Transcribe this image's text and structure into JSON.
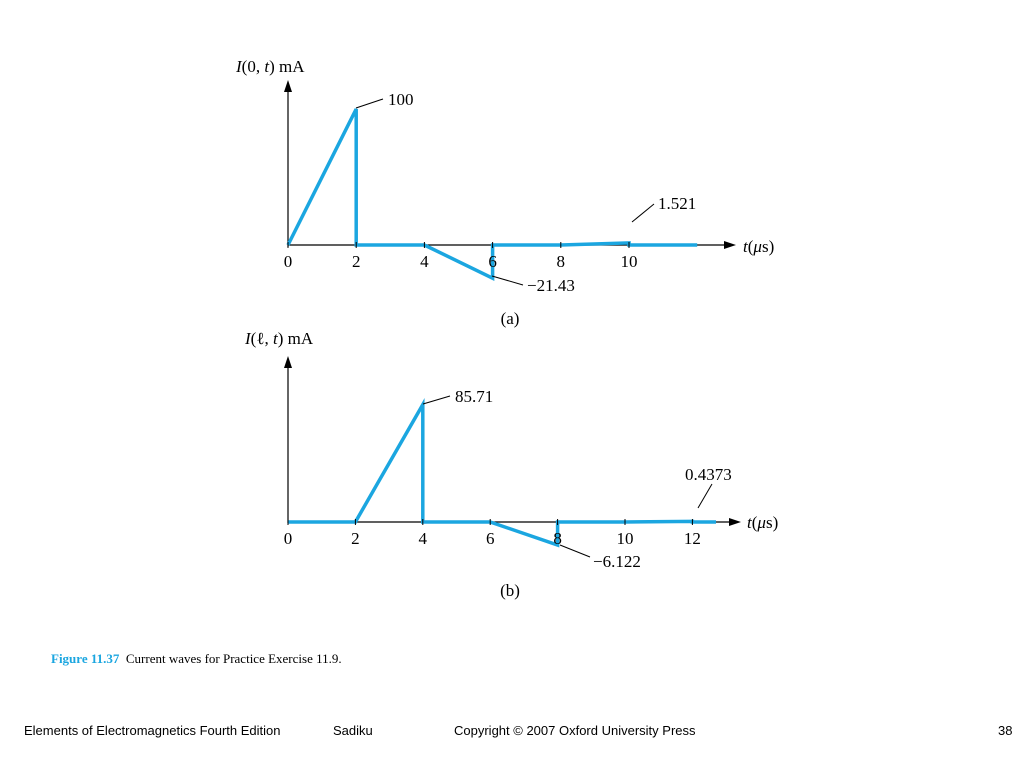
{
  "colors": {
    "wave": "#1ba6e0",
    "caption_label": "#1ba6e0"
  },
  "chart_data": [
    {
      "type": "line",
      "ylabel": {
        "italic": "I",
        "rest": "(0, ",
        "var": "t",
        "unit": ") mA"
      },
      "xlabel": {
        "var": "t",
        "unit_open": "(",
        "unit_mu": "μ",
        "unit_rest": "s)"
      },
      "tick_labels": [
        "0",
        "2",
        "4",
        "6",
        "8",
        "10"
      ],
      "ticks": [
        0,
        2,
        4,
        6,
        8,
        10
      ],
      "x": [
        0,
        2,
        2,
        4,
        6,
        6,
        8,
        10,
        10,
        12
      ],
      "y": [
        0,
        100,
        0,
        0,
        -21.43,
        0,
        0,
        1.521,
        0,
        0
      ],
      "annotations": [
        "100",
        "−21.43",
        "1.521"
      ],
      "panel_label": "(a)"
    },
    {
      "type": "line",
      "ylabel": {
        "italic": "I",
        "rest": "(ℓ, ",
        "var": "t",
        "unit": ") mA"
      },
      "xlabel": {
        "var": "t",
        "unit_open": "(",
        "unit_mu": "μ",
        "unit_rest": "s)"
      },
      "tick_labels": [
        "0",
        "2",
        "4",
        "6",
        "8",
        "10",
        "12"
      ],
      "ticks": [
        0,
        2,
        4,
        6,
        8,
        10,
        12
      ],
      "x": [
        0,
        2,
        4,
        4,
        6,
        8,
        8,
        10,
        12,
        12,
        12.7
      ],
      "y": [
        0,
        0,
        85.71,
        0,
        0,
        -6.122,
        0,
        0,
        0.4373,
        0,
        0
      ],
      "annotations": [
        "85.71",
        "−6.122",
        "0.4373"
      ],
      "panel_label": "(b)"
    }
  ],
  "caption": {
    "label": "Figure 11.37",
    "text": "Current waves for Practice Exercise 11.9."
  },
  "footer": {
    "book": "Elements of Electromagnetics Fourth Edition",
    "author": "Sadiku",
    "copyright": "Copyright © 2007 Oxford University Press",
    "page": "38"
  }
}
